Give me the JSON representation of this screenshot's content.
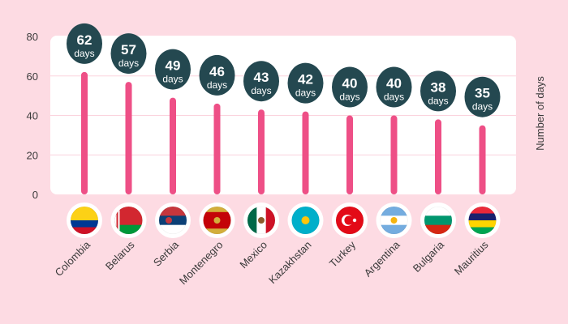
{
  "chart_data": {
    "type": "bar",
    "style": "lollipop",
    "title": "",
    "xlabel": "",
    "ylabel": "Number of days",
    "ylim": [
      0,
      80
    ],
    "yticks": [
      0,
      20,
      40,
      60,
      80
    ],
    "grid": true,
    "unit_label": "days",
    "categories": [
      "Colombia",
      "Belarus",
      "Serbia",
      "Montenegro",
      "Mexico",
      "Kazakhstan",
      "Turkey",
      "Argentina",
      "Bulgaria",
      "Mauritius"
    ],
    "values": [
      62,
      57,
      49,
      46,
      43,
      42,
      40,
      40,
      38,
      35
    ],
    "colors": {
      "background": "#fddbe3",
      "plot": "#ffffff",
      "bar": "#ee4f86",
      "bubble": "#244850",
      "grid": "#fbd3dd",
      "text": "#3a3a3a"
    }
  },
  "flags": [
    {
      "type": "h",
      "stripes": [
        "#fcd116",
        "#fcd116",
        "#003893",
        "#ce1126"
      ]
    },
    {
      "type": "h",
      "stripes": [
        "#d22730",
        "#d22730",
        "#009739"
      ],
      "hoist": "#ffffff"
    },
    {
      "type": "h",
      "stripes": [
        "#c6363c",
        "#0c4076",
        "#ffffff"
      ],
      "emblem": "#c6363c"
    },
    {
      "type": "h",
      "stripes": [
        "#d3ae3b",
        "#c40308",
        "#c40308",
        "#c40308",
        "#d3ae3b"
      ],
      "emblem": "#d3ae3b"
    },
    {
      "type": "v",
      "stripes": [
        "#006847",
        "#ffffff",
        "#ce1126"
      ],
      "emblem": "#8b5a2b"
    },
    {
      "type": "h",
      "stripes": [
        "#00afca"
      ],
      "emblem": "#fec50c"
    },
    {
      "type": "h",
      "stripes": [
        "#e30a17"
      ],
      "crescent": "#ffffff"
    },
    {
      "type": "h",
      "stripes": [
        "#74acdf",
        "#ffffff",
        "#74acdf"
      ],
      "emblem": "#f6b40e"
    },
    {
      "type": "h",
      "stripes": [
        "#ffffff",
        "#00966e",
        "#d62612"
      ]
    },
    {
      "type": "h",
      "stripes": [
        "#ea2839",
        "#1a206d",
        "#ffd500",
        "#00a551"
      ]
    }
  ]
}
